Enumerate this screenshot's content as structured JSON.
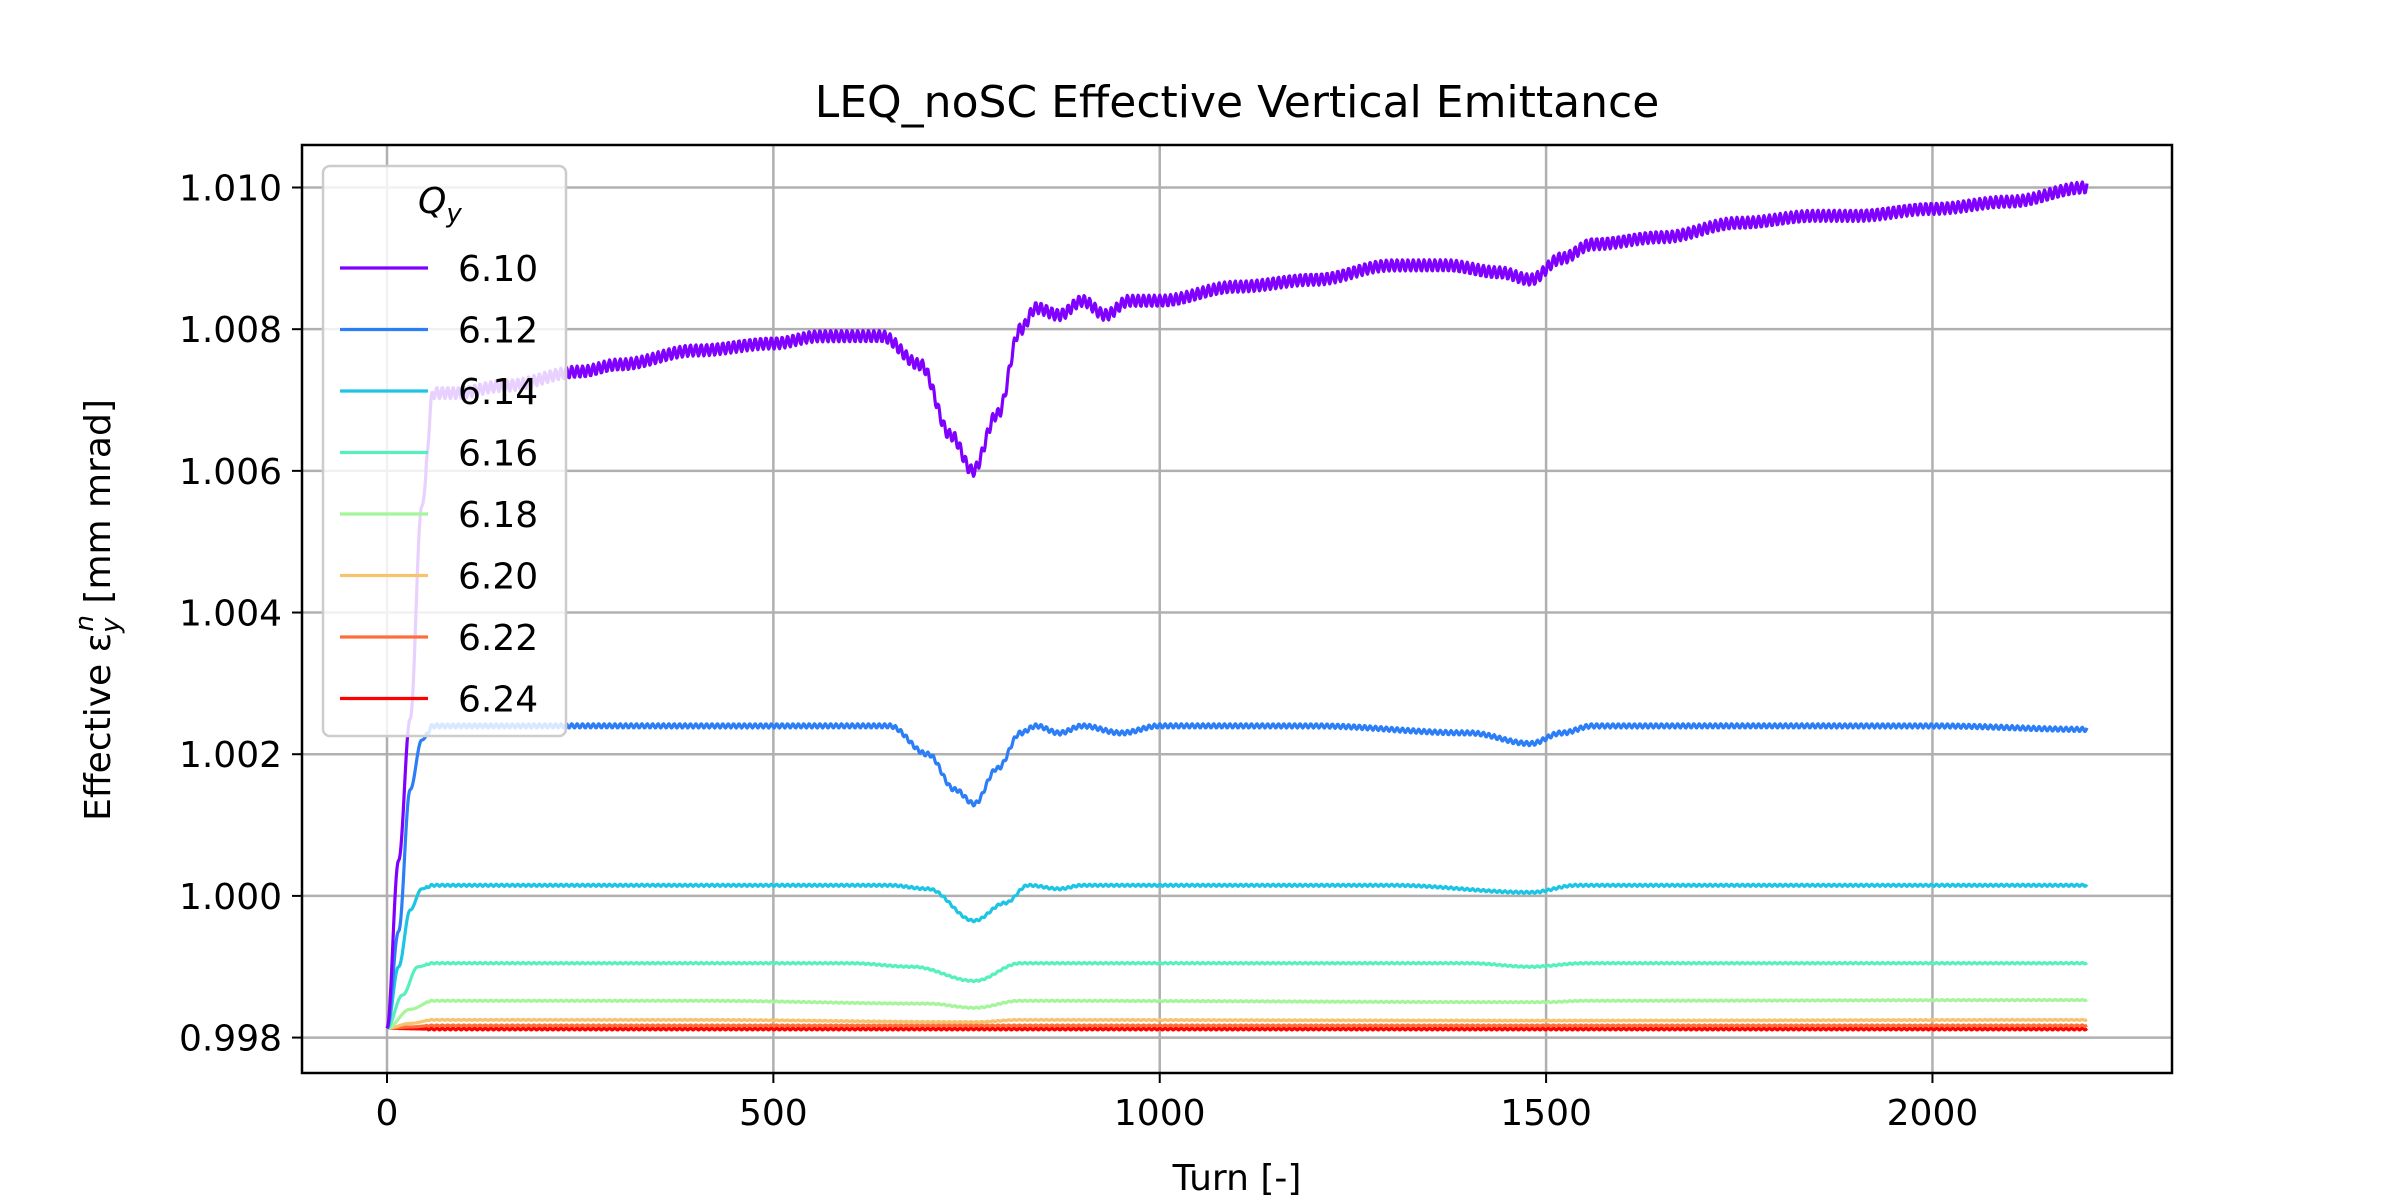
{
  "chart_data": {
    "type": "line",
    "title": "LEQ_noSC Effective Vertical Emittance",
    "xlabel": "Turn [-]",
    "ylabel": "Effective ε",
    "ylabel_sub": "y",
    "ylabel_sup": "n",
    "ylabel_unit": " [mm mrad]",
    "xlim": [
      -110,
      2310
    ],
    "ylim": [
      0.9975,
      1.0106
    ],
    "x_ticks": [
      0,
      500,
      1000,
      1500,
      2000
    ],
    "x_tick_labels": [
      "0",
      "500",
      "1000",
      "1500",
      "2000"
    ],
    "y_ticks": [
      0.998,
      1.0,
      1.002,
      1.004,
      1.006,
      1.008,
      1.01
    ],
    "y_tick_labels": [
      "0.998",
      "1.000",
      "1.002",
      "1.004",
      "1.006",
      "1.008",
      "1.010"
    ],
    "grid": true,
    "legend": {
      "title": "Q",
      "title_sub": "y",
      "placement": "upper-left"
    },
    "series": [
      {
        "name": "6.10",
        "color": "#8000ff",
        "ripple": 8e-05,
        "points": [
          [
            0,
            0.99813
          ],
          [
            15,
            1.0005
          ],
          [
            30,
            1.0025
          ],
          [
            45,
            1.0055
          ],
          [
            60,
            1.0071
          ],
          [
            90,
            1.0071
          ],
          [
            150,
            1.0072
          ],
          [
            250,
            1.0074
          ],
          [
            300,
            1.0075
          ],
          [
            400,
            1.0077
          ],
          [
            500,
            1.0078
          ],
          [
            560,
            1.0079
          ],
          [
            640,
            1.0079
          ],
          [
            690,
            1.0075
          ],
          [
            730,
            1.0065
          ],
          [
            758,
            1.006
          ],
          [
            790,
            1.0068
          ],
          [
            820,
            1.008
          ],
          [
            840,
            1.0083
          ],
          [
            870,
            1.0082
          ],
          [
            900,
            1.0084
          ],
          [
            930,
            1.0082
          ],
          [
            960,
            1.0084
          ],
          [
            1000,
            1.0084
          ],
          [
            1100,
            1.0086
          ],
          [
            1200,
            1.0087
          ],
          [
            1300,
            1.0089
          ],
          [
            1370,
            1.0089
          ],
          [
            1440,
            1.0088
          ],
          [
            1480,
            1.0087
          ],
          [
            1520,
            1.009
          ],
          [
            1560,
            1.0092
          ],
          [
            1650,
            1.0093
          ],
          [
            1750,
            1.0095
          ],
          [
            1850,
            1.0096
          ],
          [
            1900,
            1.0096
          ],
          [
            2000,
            1.0097
          ],
          [
            2100,
            1.0098
          ],
          [
            2200,
            1.01
          ]
        ]
      },
      {
        "name": "6.12",
        "color": "#2c7ef7",
        "ripple": 3e-05,
        "points": [
          [
            0,
            0.99813
          ],
          [
            15,
            0.9995
          ],
          [
            30,
            1.0015
          ],
          [
            45,
            1.0022
          ],
          [
            60,
            1.0024
          ],
          [
            150,
            1.0024
          ],
          [
            300,
            1.0024
          ],
          [
            500,
            1.0024
          ],
          [
            650,
            1.0024
          ],
          [
            700,
            1.002
          ],
          [
            735,
            1.0015
          ],
          [
            760,
            1.0013
          ],
          [
            790,
            1.0018
          ],
          [
            820,
            1.0023
          ],
          [
            840,
            1.0024
          ],
          [
            870,
            1.0023
          ],
          [
            900,
            1.0024
          ],
          [
            950,
            1.0023
          ],
          [
            1000,
            1.0024
          ],
          [
            1200,
            1.0024
          ],
          [
            1400,
            1.0023
          ],
          [
            1480,
            1.00215
          ],
          [
            1520,
            1.0023
          ],
          [
            1560,
            1.0024
          ],
          [
            1800,
            1.0024
          ],
          [
            1900,
            1.0024
          ],
          [
            2000,
            1.0024
          ],
          [
            2200,
            1.00235
          ]
        ]
      },
      {
        "name": "6.14",
        "color": "#1bc5e3",
        "ripple": 1.5e-05,
        "points": [
          [
            0,
            0.99813
          ],
          [
            15,
            0.999
          ],
          [
            30,
            0.9998
          ],
          [
            45,
            1.0001
          ],
          [
            60,
            1.00015
          ],
          [
            200,
            1.00015
          ],
          [
            500,
            1.00015
          ],
          [
            650,
            1.00015
          ],
          [
            700,
            1.0001
          ],
          [
            760,
            0.99965
          ],
          [
            800,
            0.9999
          ],
          [
            830,
            1.00015
          ],
          [
            870,
            1.0001
          ],
          [
            900,
            1.00015
          ],
          [
            1000,
            1.00015
          ],
          [
            1300,
            1.00015
          ],
          [
            1480,
            1.00005
          ],
          [
            1540,
            1.00015
          ],
          [
            1800,
            1.00015
          ],
          [
            2200,
            1.00015
          ]
        ]
      },
      {
        "name": "6.16",
        "color": "#55f0be",
        "ripple": 1e-05,
        "points": [
          [
            0,
            0.99813
          ],
          [
            20,
            0.9986
          ],
          [
            40,
            0.999
          ],
          [
            60,
            0.99905
          ],
          [
            300,
            0.99905
          ],
          [
            600,
            0.99905
          ],
          [
            680,
            0.999
          ],
          [
            760,
            0.9988
          ],
          [
            820,
            0.99905
          ],
          [
            1000,
            0.99905
          ],
          [
            1400,
            0.99905
          ],
          [
            1480,
            0.999
          ],
          [
            1550,
            0.99905
          ],
          [
            2200,
            0.99905
          ]
        ]
      },
      {
        "name": "6.18",
        "color": "#a5f59b",
        "ripple": 8e-06,
        "points": [
          [
            0,
            0.99813
          ],
          [
            30,
            0.9984
          ],
          [
            60,
            0.99852
          ],
          [
            400,
            0.99852
          ],
          [
            700,
            0.99848
          ],
          [
            760,
            0.99842
          ],
          [
            820,
            0.99852
          ],
          [
            1500,
            0.9985
          ],
          [
            1550,
            0.99852
          ],
          [
            2200,
            0.99853
          ]
        ]
      },
      {
        "name": "6.20",
        "color": "#f6c370",
        "ripple": 6e-06,
        "points": [
          [
            0,
            0.99813
          ],
          [
            30,
            0.9982
          ],
          [
            60,
            0.99825
          ],
          [
            400,
            0.99825
          ],
          [
            760,
            0.99822
          ],
          [
            820,
            0.99825
          ],
          [
            1500,
            0.99824
          ],
          [
            2200,
            0.99825
          ]
        ]
      },
      {
        "name": "6.22",
        "color": "#ff6d3a",
        "ripple": 8e-06,
        "points": [
          [
            0,
            0.99813
          ],
          [
            30,
            0.99815
          ],
          [
            60,
            0.99817
          ],
          [
            500,
            0.99817
          ],
          [
            1000,
            0.99817
          ],
          [
            1500,
            0.99817
          ],
          [
            2200,
            0.99817
          ]
        ]
      },
      {
        "name": "6.24",
        "color": "#ff0000",
        "ripple": 1.2e-05,
        "points": [
          [
            0,
            0.99813
          ],
          [
            60,
            0.99812
          ],
          [
            500,
            0.99812
          ],
          [
            1000,
            0.99812
          ],
          [
            2200,
            0.99812
          ]
        ]
      }
    ]
  }
}
